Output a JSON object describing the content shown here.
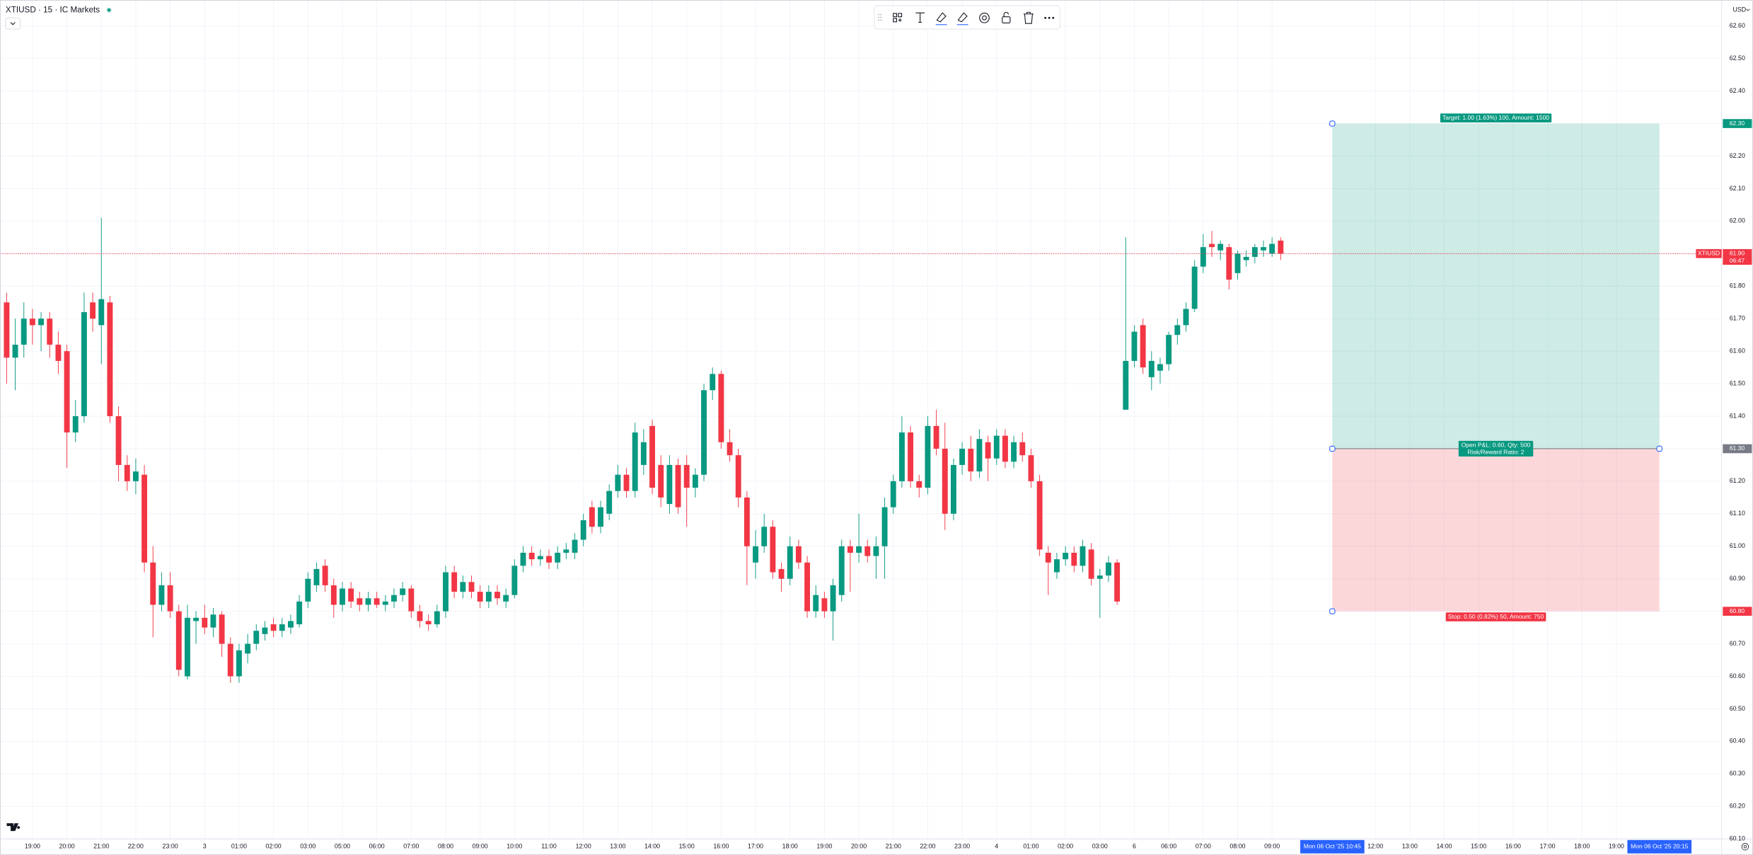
{
  "header": {
    "symbol_line": "XTIUSD · 15 · IC Markets"
  },
  "chart_data": {
    "type": "candlestick",
    "currency": "USD",
    "up_color": "#089981",
    "down_color": "#f23645",
    "grid": true,
    "ylim": [
      60.1,
      62.68
    ],
    "xlim": [
      -0.77,
      199.23
    ],
    "yticks": [
      {
        "value": 62.6,
        "label": "62.60"
      },
      {
        "value": 62.5,
        "label": "62.50"
      },
      {
        "value": 62.4,
        "label": "62.40"
      },
      {
        "value": 62.3,
        "label": "62.30"
      },
      {
        "value": 62.2,
        "label": "62.20"
      },
      {
        "value": 62.1,
        "label": "62.10"
      },
      {
        "value": 62.0,
        "label": "62.00"
      },
      {
        "value": 61.9,
        "label": "61.90"
      },
      {
        "value": 61.8,
        "label": "61.80"
      },
      {
        "value": 61.7,
        "label": "61.70"
      },
      {
        "value": 61.6,
        "label": "61.60"
      },
      {
        "value": 61.5,
        "label": "61.50"
      },
      {
        "value": 61.4,
        "label": "61.40"
      },
      {
        "value": 61.3,
        "label": "61.30"
      },
      {
        "value": 61.2,
        "label": "61.20"
      },
      {
        "value": 61.1,
        "label": "61.10"
      },
      {
        "value": 61.0,
        "label": "61.00"
      },
      {
        "value": 60.9,
        "label": "60.90"
      },
      {
        "value": 60.8,
        "label": "60.80"
      },
      {
        "value": 60.7,
        "label": "60.70"
      },
      {
        "value": 60.6,
        "label": "60.60"
      },
      {
        "value": 60.5,
        "label": "60.50"
      },
      {
        "value": 60.4,
        "label": "60.40"
      },
      {
        "value": 60.3,
        "label": "60.30"
      },
      {
        "value": 60.2,
        "label": "60.20"
      },
      {
        "value": 60.1,
        "label": "60.10"
      }
    ],
    "xticks": [
      {
        "value": 3,
        "label": "19:00"
      },
      {
        "value": 7,
        "label": "20:00"
      },
      {
        "value": 11,
        "label": "21:00"
      },
      {
        "value": 15,
        "label": "22:00"
      },
      {
        "value": 19,
        "label": "23:00"
      },
      {
        "value": 23,
        "label": "3"
      },
      {
        "value": 27,
        "label": "01:00"
      },
      {
        "value": 31,
        "label": "02:00"
      },
      {
        "value": 35,
        "label": "03:00"
      },
      {
        "value": 39,
        "label": "05:00"
      },
      {
        "value": 43,
        "label": "06:00"
      },
      {
        "value": 47,
        "label": "07:00"
      },
      {
        "value": 51,
        "label": "08:00"
      },
      {
        "value": 55,
        "label": "09:00"
      },
      {
        "value": 59,
        "label": "10:00"
      },
      {
        "value": 63,
        "label": "11:00"
      },
      {
        "value": 67,
        "label": "12:00"
      },
      {
        "value": 71,
        "label": "13:00"
      },
      {
        "value": 75,
        "label": "14:00"
      },
      {
        "value": 79,
        "label": "15:00"
      },
      {
        "value": 83,
        "label": "16:00"
      },
      {
        "value": 87,
        "label": "17:00"
      },
      {
        "value": 91,
        "label": "18:00"
      },
      {
        "value": 95,
        "label": "19:00"
      },
      {
        "value": 99,
        "label": "20:00"
      },
      {
        "value": 103,
        "label": "21:00"
      },
      {
        "value": 107,
        "label": "22:00"
      },
      {
        "value": 111,
        "label": "23:00"
      },
      {
        "value": 115,
        "label": "4"
      },
      {
        "value": 119,
        "label": "01:00"
      },
      {
        "value": 123,
        "label": "02:00"
      },
      {
        "value": 127,
        "label": "03:00"
      },
      {
        "value": 131,
        "label": "6"
      },
      {
        "value": 135,
        "label": "06:00"
      },
      {
        "value": 139,
        "label": "07:00"
      },
      {
        "value": 143,
        "label": "08:00"
      },
      {
        "value": 147,
        "label": "09:00"
      },
      {
        "value": 159,
        "label": "12:00"
      },
      {
        "value": 163,
        "label": "13:00"
      },
      {
        "value": 167,
        "label": "14:00"
      },
      {
        "value": 171,
        "label": "15:00"
      },
      {
        "value": 175,
        "label": "16:00"
      },
      {
        "value": 179,
        "label": "17:00"
      },
      {
        "value": 183,
        "label": "18:00"
      },
      {
        "value": 187,
        "label": "19:00"
      }
    ],
    "candles": [
      [
        61.75,
        61.78,
        61.5,
        61.58
      ],
      [
        61.58,
        61.7,
        61.48,
        61.62
      ],
      [
        61.62,
        61.75,
        61.58,
        61.7
      ],
      [
        61.7,
        61.73,
        61.62,
        61.68
      ],
      [
        61.68,
        61.72,
        61.6,
        61.7
      ],
      [
        61.7,
        61.72,
        61.58,
        61.62
      ],
      [
        61.62,
        61.66,
        61.53,
        61.57
      ],
      [
        61.6,
        61.62,
        61.24,
        61.35
      ],
      [
        61.35,
        61.45,
        61.32,
        61.4
      ],
      [
        61.4,
        61.78,
        61.38,
        61.72
      ],
      [
        61.75,
        61.78,
        61.66,
        61.7
      ],
      [
        61.68,
        62.01,
        61.56,
        61.76
      ],
      [
        61.75,
        61.77,
        61.38,
        61.4
      ],
      [
        61.4,
        61.43,
        61.2,
        61.25
      ],
      [
        61.25,
        61.28,
        61.17,
        61.2
      ],
      [
        61.2,
        61.27,
        61.16,
        61.23
      ],
      [
        61.22,
        61.25,
        60.92,
        60.95
      ],
      [
        60.95,
        61.0,
        60.72,
        60.82
      ],
      [
        60.82,
        60.92,
        60.8,
        60.88
      ],
      [
        60.88,
        60.92,
        60.78,
        60.8
      ],
      [
        60.8,
        60.82,
        60.6,
        60.62
      ],
      [
        60.6,
        60.82,
        60.59,
        60.78
      ],
      [
        60.77,
        60.8,
        60.7,
        60.78
      ],
      [
        60.78,
        60.82,
        60.73,
        60.75
      ],
      [
        60.75,
        60.81,
        60.72,
        60.79
      ],
      [
        60.79,
        60.8,
        60.66,
        60.7
      ],
      [
        60.7,
        60.72,
        60.58,
        60.6
      ],
      [
        60.6,
        60.7,
        60.58,
        60.68
      ],
      [
        60.67,
        60.73,
        60.64,
        60.7
      ],
      [
        60.7,
        60.76,
        60.68,
        60.74
      ],
      [
        60.73,
        60.77,
        60.71,
        60.75
      ],
      [
        60.76,
        60.78,
        60.72,
        60.74
      ],
      [
        60.74,
        60.78,
        60.72,
        60.76
      ],
      [
        60.75,
        60.79,
        60.73,
        60.77
      ],
      [
        60.76,
        60.85,
        60.75,
        60.83
      ],
      [
        60.83,
        60.92,
        60.81,
        60.9
      ],
      [
        60.88,
        60.95,
        60.86,
        60.93
      ],
      [
        60.94,
        60.96,
        60.86,
        60.88
      ],
      [
        60.88,
        60.9,
        60.78,
        60.82
      ],
      [
        60.82,
        60.89,
        60.8,
        60.87
      ],
      [
        60.87,
        60.89,
        60.81,
        60.83
      ],
      [
        60.84,
        60.86,
        60.8,
        60.82
      ],
      [
        60.82,
        60.86,
        60.8,
        60.84
      ],
      [
        60.84,
        60.86,
        60.81,
        60.82
      ],
      [
        60.82,
        60.85,
        60.8,
        60.83
      ],
      [
        60.83,
        60.87,
        60.81,
        60.85
      ],
      [
        60.85,
        60.89,
        60.83,
        60.87
      ],
      [
        60.87,
        60.88,
        60.78,
        60.8
      ],
      [
        60.8,
        60.82,
        60.75,
        60.77
      ],
      [
        60.77,
        60.79,
        60.74,
        60.76
      ],
      [
        60.76,
        60.82,
        60.75,
        60.8
      ],
      [
        60.8,
        60.94,
        60.78,
        60.92
      ],
      [
        60.92,
        60.94,
        60.84,
        60.86
      ],
      [
        60.86,
        60.91,
        60.84,
        60.89
      ],
      [
        60.89,
        60.91,
        60.84,
        60.86
      ],
      [
        60.86,
        60.88,
        60.81,
        60.83
      ],
      [
        60.83,
        60.88,
        60.81,
        60.86
      ],
      [
        60.86,
        60.88,
        60.82,
        60.84
      ],
      [
        60.83,
        60.87,
        60.81,
        60.85
      ],
      [
        60.85,
        60.96,
        60.84,
        60.94
      ],
      [
        60.94,
        61.0,
        60.92,
        60.98
      ],
      [
        60.98,
        61.0,
        60.94,
        60.96
      ],
      [
        60.96,
        60.99,
        60.94,
        60.97
      ],
      [
        60.97,
        60.99,
        60.93,
        60.95
      ],
      [
        60.95,
        61.0,
        60.93,
        60.98
      ],
      [
        60.98,
        61.01,
        60.96,
        60.99
      ],
      [
        60.98,
        61.04,
        60.96,
        61.02
      ],
      [
        61.02,
        61.1,
        61.0,
        61.08
      ],
      [
        61.12,
        61.14,
        61.04,
        61.06
      ],
      [
        61.06,
        61.14,
        61.04,
        61.12
      ],
      [
        61.1,
        61.19,
        61.08,
        61.17
      ],
      [
        61.17,
        61.25,
        61.15,
        61.22
      ],
      [
        61.22,
        61.24,
        61.15,
        61.17
      ],
      [
        61.17,
        61.38,
        61.15,
        61.35
      ],
      [
        61.25,
        61.36,
        61.22,
        61.32
      ],
      [
        61.37,
        61.39,
        61.16,
        61.18
      ],
      [
        61.25,
        61.28,
        61.12,
        61.15
      ],
      [
        61.13,
        61.28,
        61.1,
        61.25
      ],
      [
        61.25,
        61.27,
        61.1,
        61.12
      ],
      [
        61.25,
        61.28,
        61.06,
        61.18
      ],
      [
        61.18,
        61.24,
        61.15,
        61.22
      ],
      [
        61.22,
        61.5,
        61.2,
        61.48
      ],
      [
        61.48,
        61.55,
        61.45,
        61.53
      ],
      [
        61.53,
        61.54,
        61.3,
        61.32
      ],
      [
        61.32,
        61.36,
        61.26,
        61.28
      ],
      [
        61.28,
        61.3,
        61.12,
        61.15
      ],
      [
        61.15,
        61.17,
        60.88,
        61.0
      ],
      [
        60.95,
        61.05,
        60.9,
        61.0
      ],
      [
        61.0,
        61.1,
        60.98,
        61.06
      ],
      [
        61.06,
        61.08,
        60.9,
        60.92
      ],
      [
        60.93,
        60.95,
        60.86,
        60.9
      ],
      [
        60.9,
        61.03,
        60.88,
        61.0
      ],
      [
        61.0,
        61.02,
        60.93,
        60.95
      ],
      [
        60.95,
        60.97,
        60.78,
        60.8
      ],
      [
        60.8,
        60.88,
        60.78,
        60.85
      ],
      [
        60.84,
        60.86,
        60.78,
        60.8
      ],
      [
        60.8,
        60.9,
        60.71,
        60.88
      ],
      [
        60.85,
        61.02,
        60.83,
        61.0
      ],
      [
        61.0,
        61.02,
        60.86,
        60.98
      ],
      [
        60.98,
        61.1,
        60.95,
        61.0
      ],
      [
        61.0,
        61.02,
        60.95,
        60.97
      ],
      [
        60.97,
        61.03,
        60.9,
        61.0
      ],
      [
        61.0,
        61.15,
        60.9,
        61.12
      ],
      [
        61.12,
        61.22,
        61.1,
        61.2
      ],
      [
        61.2,
        61.4,
        61.18,
        61.35
      ],
      [
        61.35,
        61.37,
        61.18,
        61.2
      ],
      [
        61.2,
        61.22,
        61.15,
        61.18
      ],
      [
        61.18,
        61.4,
        61.16,
        61.37
      ],
      [
        61.37,
        61.42,
        61.28,
        61.3
      ],
      [
        61.3,
        61.38,
        61.05,
        61.1
      ],
      [
        61.1,
        61.27,
        61.08,
        61.25
      ],
      [
        61.25,
        61.32,
        61.22,
        61.3
      ],
      [
        61.3,
        61.34,
        61.2,
        61.23
      ],
      [
        61.23,
        61.36,
        61.21,
        61.33
      ],
      [
        61.32,
        61.34,
        61.2,
        61.27
      ],
      [
        61.27,
        61.36,
        61.25,
        61.34
      ],
      [
        61.34,
        61.36,
        61.24,
        61.26
      ],
      [
        61.26,
        61.34,
        61.24,
        61.32
      ],
      [
        61.32,
        61.35,
        61.26,
        61.28
      ],
      [
        61.28,
        61.3,
        61.18,
        61.2
      ],
      [
        61.2,
        61.22,
        60.97,
        60.99
      ],
      [
        60.98,
        61.0,
        60.85,
        60.95
      ],
      [
        60.92,
        60.98,
        60.9,
        60.96
      ],
      [
        60.96,
        61.0,
        60.94,
        60.98
      ],
      [
        60.98,
        61.0,
        60.92,
        60.94
      ],
      [
        60.94,
        61.02,
        60.92,
        61.0
      ],
      [
        60.99,
        61.01,
        60.88,
        60.9
      ],
      [
        60.9,
        60.93,
        60.78,
        60.91
      ],
      [
        60.91,
        60.97,
        60.89,
        60.95
      ],
      [
        60.95,
        60.96,
        60.82,
        60.83
      ],
      [
        61.42,
        61.95,
        61.42,
        61.57
      ],
      [
        61.57,
        61.68,
        61.55,
        61.66
      ],
      [
        61.68,
        61.7,
        61.53,
        61.55
      ],
      [
        61.52,
        61.6,
        61.48,
        61.57
      ],
      [
        61.54,
        61.58,
        61.5,
        61.56
      ],
      [
        61.56,
        61.66,
        61.54,
        61.65
      ],
      [
        61.65,
        61.7,
        61.62,
        61.68
      ],
      [
        61.68,
        61.75,
        61.66,
        61.73
      ],
      [
        61.73,
        61.88,
        61.72,
        61.86
      ],
      [
        61.86,
        61.96,
        61.84,
        61.92
      ],
      [
        61.93,
        61.97,
        61.89,
        61.92
      ],
      [
        61.91,
        61.94,
        61.88,
        61.93
      ],
      [
        61.92,
        61.93,
        61.79,
        61.82
      ],
      [
        61.84,
        61.91,
        61.82,
        61.9
      ],
      [
        61.88,
        61.91,
        61.86,
        61.89
      ],
      [
        61.89,
        61.93,
        61.87,
        61.92
      ],
      [
        61.91,
        61.94,
        61.89,
        61.92
      ],
      [
        61.9,
        61.95,
        61.89,
        61.93
      ],
      [
        61.94,
        61.95,
        61.88,
        61.9
      ]
    ],
    "current_price": {
      "value": 61.9,
      "label": "61.90",
      "symbol": "XTIUSD",
      "countdown": "06:47"
    },
    "position": {
      "start": 154,
      "end": 192,
      "start_label": "Mon 06 Oct '25  10:45",
      "end_label": "Mon 06 Oct '25  20:15",
      "entry": {
        "value": 61.3,
        "label": "61.30"
      },
      "target": {
        "value": 62.3,
        "label": "62.30"
      },
      "stop": {
        "value": 60.8,
        "label": "60.80"
      },
      "target_text": "Target: 1.00 (1.63%) 100, Amount: 1500",
      "pnl_text": "Open P&L: 0.60, Qty: 500",
      "rr_text": "Risk/Reward Ratio: 2",
      "stop_text": "Stop: 0.50 (0.82%) 50, Amount: 750",
      "profit_color": "#089981",
      "loss_color": "#f23645",
      "entry_color": "#787b86"
    }
  }
}
